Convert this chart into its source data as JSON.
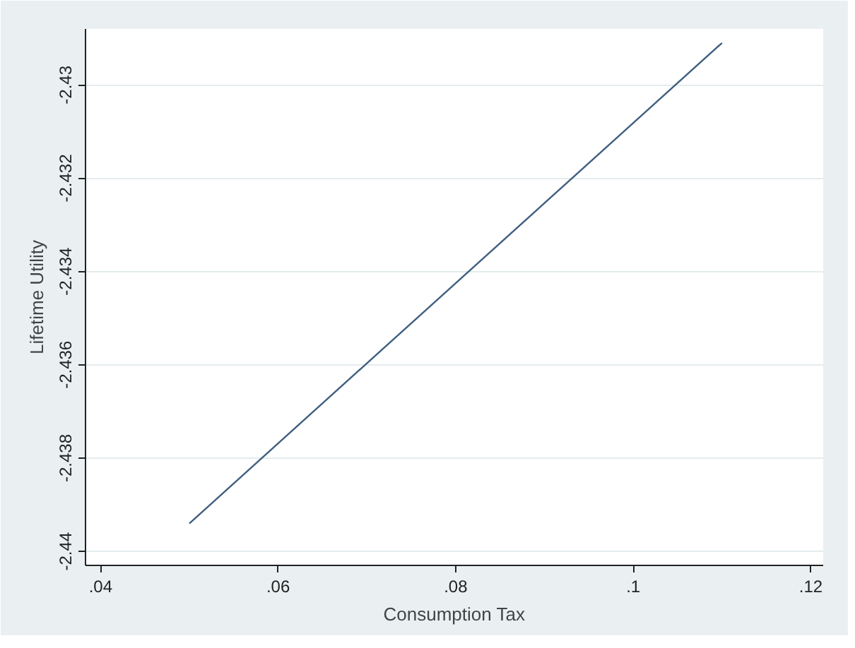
{
  "chart_data": {
    "type": "line",
    "xlabel": "Consumption Tax",
    "ylabel": "Lifetime Utility",
    "x": [
      0.05,
      0.11
    ],
    "series": [
      {
        "color": "#3f5f7f",
        "values": [
          -2.4394,
          -2.4291
        ]
      }
    ],
    "xlim": [
      0.0383,
      0.1214
    ],
    "ylim": [
      -2.4403,
      -2.4288
    ],
    "xticks": [
      {
        "value": 0.04,
        "label": ".04"
      },
      {
        "value": 0.06,
        "label": ".06"
      },
      {
        "value": 0.08,
        "label": ".08"
      },
      {
        "value": 0.1,
        "label": ".1"
      },
      {
        "value": 0.12,
        "label": ".12"
      }
    ],
    "yticks": [
      -2.44,
      -2.438,
      -2.436,
      -2.434,
      -2.432,
      -2.43
    ],
    "grid": "y",
    "marker": "none",
    "line_style": "solid"
  }
}
